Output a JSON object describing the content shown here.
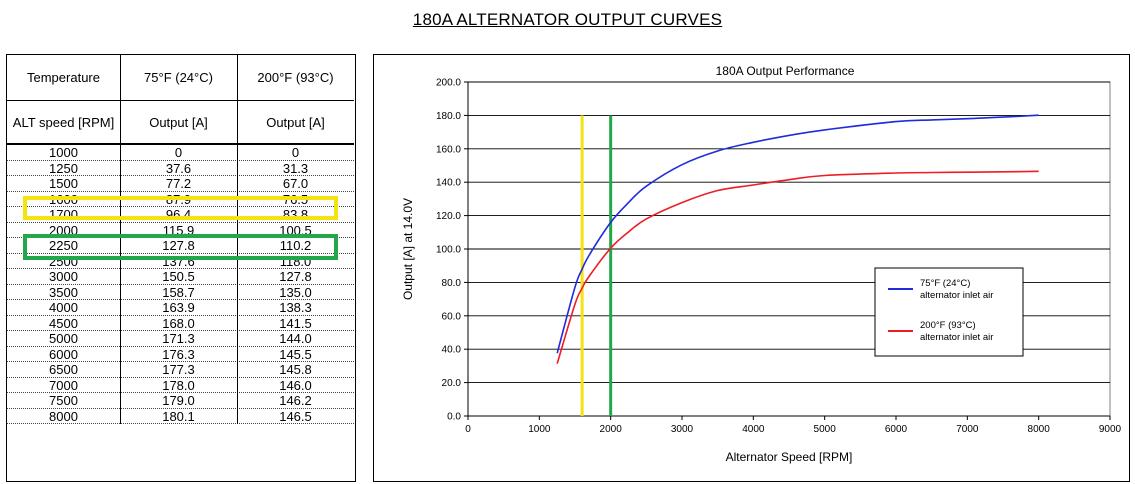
{
  "page": {
    "title": "180A ALTERNATOR OUTPUT CURVES"
  },
  "table": {
    "header_row1": [
      "Temperature",
      "75°F (24°C)",
      "200°F (93°C)"
    ],
    "header_row2": [
      "ALT speed [RPM]",
      "Output [A]",
      "Output [A]"
    ],
    "rows": [
      [
        "1000",
        "0",
        "0"
      ],
      [
        "1250",
        "37.6",
        "31.3"
      ],
      [
        "1500",
        "77.2",
        "67.0"
      ],
      [
        "1600",
        "87.9",
        "76.5"
      ],
      [
        "1700",
        "96.4",
        "83.8"
      ],
      [
        "2000",
        "115.9",
        "100.5"
      ],
      [
        "2250",
        "127.8",
        "110.2"
      ],
      [
        "2500",
        "137.6",
        "118.0"
      ],
      [
        "3000",
        "150.5",
        "127.8"
      ],
      [
        "3500",
        "158.7",
        "135.0"
      ],
      [
        "4000",
        "163.9",
        "138.3"
      ],
      [
        "4500",
        "168.0",
        "141.5"
      ],
      [
        "5000",
        "171.3",
        "144.0"
      ],
      [
        "6000",
        "176.3",
        "145.5"
      ],
      [
        "6500",
        "177.3",
        "145.8"
      ],
      [
        "7000",
        "178.0",
        "146.0"
      ],
      [
        "7500",
        "179.0",
        "146.2"
      ],
      [
        "8000",
        "180.1",
        "146.5"
      ]
    ],
    "highlights": [
      {
        "row": "1600",
        "color": "#f5e30f"
      },
      {
        "row": "2000",
        "color": "#22a84a"
      }
    ]
  },
  "chart_data": {
    "type": "line",
    "title": "180A Output Performance",
    "xlabel": "Alternator Speed [RPM]",
    "ylabel": "Output [A] at 14.0V",
    "xlim": [
      0,
      9000
    ],
    "ylim": [
      0,
      200
    ],
    "x_ticks": [
      0,
      1000,
      2000,
      3000,
      4000,
      5000,
      6000,
      7000,
      8000,
      9000
    ],
    "y_ticks": [
      "0.0",
      "20.0",
      "40.0",
      "60.0",
      "80.0",
      "100.0",
      "120.0",
      "140.0",
      "160.0",
      "180.0",
      "200.0"
    ],
    "grid": "horizontal",
    "legend_position": "right",
    "x": [
      1250,
      1500,
      1600,
      1700,
      2000,
      2250,
      2500,
      3000,
      3500,
      4000,
      4500,
      5000,
      6000,
      6500,
      7000,
      7500,
      8000
    ],
    "series": [
      {
        "name": "75°F  (24°C) alternator inlet air",
        "legend_lines": [
          "75°F  (24°C)",
          "alternator inlet air"
        ],
        "color": "#1f2bdc",
        "values": [
          37.6,
          77.2,
          87.9,
          96.4,
          115.9,
          127.8,
          137.6,
          150.5,
          158.7,
          163.9,
          168.0,
          171.3,
          176.3,
          177.3,
          178.0,
          179.0,
          180.1
        ]
      },
      {
        "name": "200°F (93°C) alternator inlet air",
        "legend_lines": [
          "200°F (93°C)",
          "alternator inlet air"
        ],
        "color": "#ee1c24",
        "values": [
          31.3,
          67.0,
          76.5,
          83.8,
          100.5,
          110.2,
          118.0,
          127.8,
          135.0,
          138.3,
          141.5,
          144.0,
          145.5,
          145.8,
          146.0,
          146.2,
          146.5
        ]
      }
    ],
    "reference_lines": [
      {
        "x": 1600,
        "color": "#f5e30f"
      },
      {
        "x": 2000,
        "color": "#22a84a"
      }
    ]
  }
}
